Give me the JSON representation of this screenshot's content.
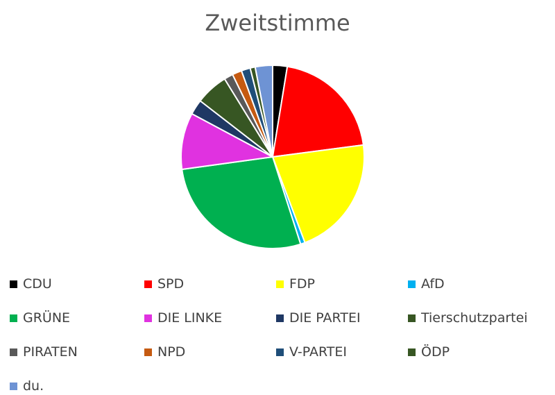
{
  "chart_data": {
    "type": "pie",
    "title": "Zweitstimme",
    "categories": [
      "CDU",
      "SPD",
      "FDP",
      "AfD",
      "GRÜNE",
      "DIE LINKE",
      "DIE PARTEI",
      "Tierschutzpartei",
      "PIRATEN",
      "NPD",
      "V-PARTEI",
      "ÖDP",
      "du."
    ],
    "values": [
      2.6,
      20.6,
      21.6,
      0.8,
      28.1,
      10.1,
      2.7,
      5.8,
      1.6,
      1.7,
      1.6,
      0.9,
      3.1
    ],
    "colors": [
      "#000000",
      "#FF0000",
      "#FFFF00",
      "#00B0F0",
      "#00B050",
      "#E032E0",
      "#1F3864",
      "#375623",
      "#595959",
      "#C55A11",
      "#1F4E79",
      "#375623",
      "#6E93D4"
    ],
    "legend_position": "bottom",
    "start_angle_deg": 0,
    "direction": "clockwise"
  }
}
